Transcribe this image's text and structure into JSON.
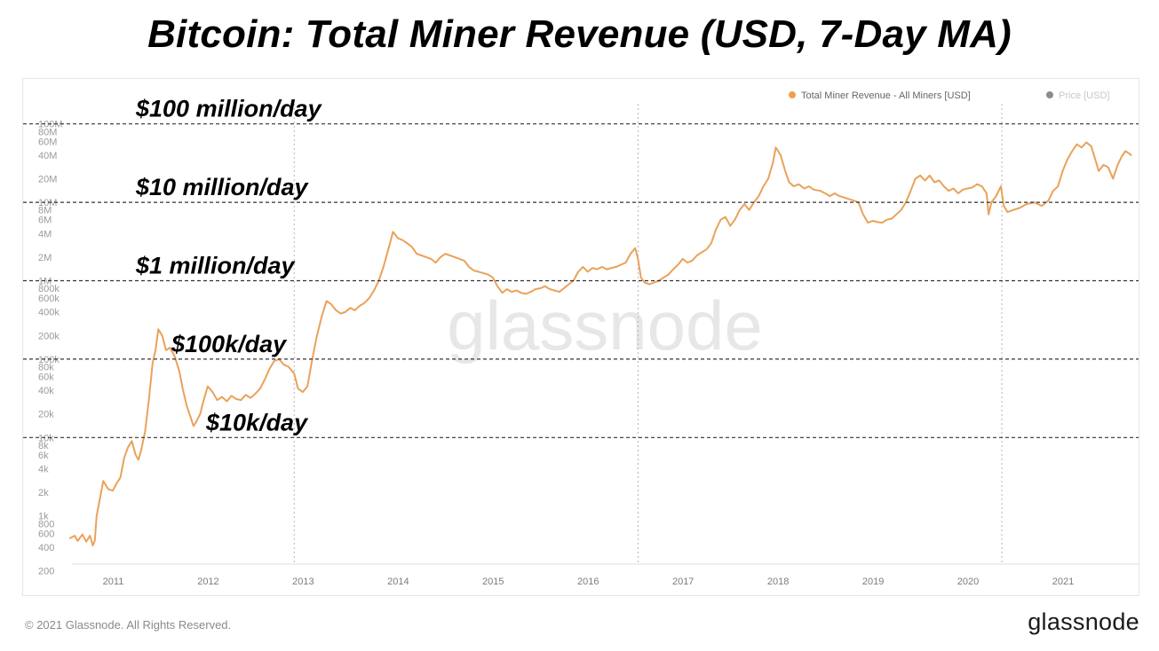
{
  "title": "Bitcoin: Total Miner Revenue (USD, 7-Day MA)",
  "footer": {
    "copyright": "© 2021 Glassnode. All Rights Reserved.",
    "logo": "glassnode"
  },
  "watermark": "glassnode",
  "chart_data": {
    "type": "line",
    "y_scale": "log",
    "ylim": [
      200,
      130000000
    ],
    "xlim": [
      2010.55,
      2021.8
    ],
    "x_ticks": [
      2011,
      2012,
      2013,
      2014,
      2015,
      2016,
      2017,
      2018,
      2019,
      2020,
      2021
    ],
    "x_tick_labels": [
      "2011",
      "2012",
      "2013",
      "2014",
      "2015",
      "2016",
      "2017",
      "2018",
      "2019",
      "2020",
      "2021"
    ],
    "y_ticks": [
      {
        "label": "100M",
        "value": 100000000
      },
      {
        "label": "80M",
        "value": 80000000
      },
      {
        "label": "60M",
        "value": 60000000
      },
      {
        "label": "40M",
        "value": 40000000
      },
      {
        "label": "20M",
        "value": 20000000
      },
      {
        "label": "10M",
        "value": 10000000
      },
      {
        "label": "8M",
        "value": 8000000
      },
      {
        "label": "6M",
        "value": 6000000
      },
      {
        "label": "4M",
        "value": 4000000
      },
      {
        "label": "2M",
        "value": 2000000
      },
      {
        "label": "1M",
        "value": 1000000
      },
      {
        "label": "800k",
        "value": 800000
      },
      {
        "label": "600k",
        "value": 600000
      },
      {
        "label": "400k",
        "value": 400000
      },
      {
        "label": "200k",
        "value": 200000
      },
      {
        "label": "100k",
        "value": 100000
      },
      {
        "label": "80k",
        "value": 80000
      },
      {
        "label": "60k",
        "value": 60000
      },
      {
        "label": "40k",
        "value": 40000
      },
      {
        "label": "20k",
        "value": 20000
      },
      {
        "label": "10k",
        "value": 10000
      },
      {
        "label": "8k",
        "value": 8000
      },
      {
        "label": "6k",
        "value": 6000
      },
      {
        "label": "4k",
        "value": 4000
      },
      {
        "label": "2k",
        "value": 2000
      },
      {
        "label": "1k",
        "value": 1000
      },
      {
        "label": "800",
        "value": 800
      },
      {
        "label": "600",
        "value": 600
      },
      {
        "label": "400",
        "value": 400
      },
      {
        "label": "200",
        "value": 200
      }
    ],
    "halving_lines": [
      2012.91,
      2016.53,
      2020.36
    ],
    "legend": [
      {
        "name": "Total Miner Revenue - All Miners [USD]",
        "color": "#f0a04b",
        "active": true
      },
      {
        "name": "Price [USD]",
        "color": "#8c8c8c",
        "active": false
      }
    ],
    "legend_position": "top-right",
    "reference_lines": [
      {
        "label": "$100 million/day",
        "value": 100000000
      },
      {
        "label": "$10 million/day",
        "value": 10000000
      },
      {
        "label": "$1 million/day",
        "value": 1000000
      },
      {
        "label": "$100k/day",
        "value": 100000
      },
      {
        "label": "$10k/day",
        "value": 10000
      }
    ],
    "series": [
      {
        "name": "Total Miner Revenue - All Miners [USD]",
        "color": "#e9a25a",
        "points": [
          [
            2010.55,
            520
          ],
          [
            2010.6,
            560
          ],
          [
            2010.63,
            480
          ],
          [
            2010.68,
            580
          ],
          [
            2010.72,
            470
          ],
          [
            2010.76,
            560
          ],
          [
            2010.79,
            420
          ],
          [
            2010.81,
            480
          ],
          [
            2010.83,
            1000
          ],
          [
            2010.87,
            1800
          ],
          [
            2010.9,
            2800
          ],
          [
            2010.95,
            2200
          ],
          [
            2011.0,
            2100
          ],
          [
            2011.04,
            2600
          ],
          [
            2011.08,
            3100
          ],
          [
            2011.12,
            5500
          ],
          [
            2011.16,
            7500
          ],
          [
            2011.2,
            9000
          ],
          [
            2011.24,
            6000
          ],
          [
            2011.27,
            5200
          ],
          [
            2011.3,
            7000
          ],
          [
            2011.34,
            12000
          ],
          [
            2011.38,
            30000
          ],
          [
            2011.42,
            90000
          ],
          [
            2011.45,
            130000
          ],
          [
            2011.48,
            240000
          ],
          [
            2011.52,
            200000
          ],
          [
            2011.56,
            130000
          ],
          [
            2011.6,
            140000
          ],
          [
            2011.65,
            110000
          ],
          [
            2011.7,
            70000
          ],
          [
            2011.74,
            40000
          ],
          [
            2011.78,
            25000
          ],
          [
            2011.82,
            18000
          ],
          [
            2011.85,
            14000
          ],
          [
            2011.88,
            16000
          ],
          [
            2011.92,
            20000
          ],
          [
            2011.95,
            28000
          ],
          [
            2012.0,
            45000
          ],
          [
            2012.05,
            38000
          ],
          [
            2012.1,
            30000
          ],
          [
            2012.15,
            33000
          ],
          [
            2012.2,
            29000
          ],
          [
            2012.25,
            34000
          ],
          [
            2012.3,
            31000
          ],
          [
            2012.35,
            30000
          ],
          [
            2012.4,
            35000
          ],
          [
            2012.45,
            32000
          ],
          [
            2012.5,
            36000
          ],
          [
            2012.55,
            42000
          ],
          [
            2012.6,
            55000
          ],
          [
            2012.65,
            75000
          ],
          [
            2012.7,
            95000
          ],
          [
            2012.75,
            100000
          ],
          [
            2012.8,
            85000
          ],
          [
            2012.85,
            80000
          ],
          [
            2012.91,
            65000
          ],
          [
            2012.95,
            42000
          ],
          [
            2013.0,
            38000
          ],
          [
            2013.05,
            45000
          ],
          [
            2013.1,
            100000
          ],
          [
            2013.15,
            200000
          ],
          [
            2013.2,
            350000
          ],
          [
            2013.25,
            550000
          ],
          [
            2013.3,
            500000
          ],
          [
            2013.35,
            420000
          ],
          [
            2013.4,
            380000
          ],
          [
            2013.45,
            400000
          ],
          [
            2013.5,
            450000
          ],
          [
            2013.55,
            420000
          ],
          [
            2013.6,
            480000
          ],
          [
            2013.65,
            520000
          ],
          [
            2013.7,
            600000
          ],
          [
            2013.75,
            750000
          ],
          [
            2013.8,
            1000000
          ],
          [
            2013.85,
            1500000
          ],
          [
            2013.9,
            2500000
          ],
          [
            2013.95,
            4200000
          ],
          [
            2014.0,
            3500000
          ],
          [
            2014.05,
            3300000
          ],
          [
            2014.1,
            3000000
          ],
          [
            2014.15,
            2700000
          ],
          [
            2014.2,
            2200000
          ],
          [
            2014.25,
            2100000
          ],
          [
            2014.3,
            2000000
          ],
          [
            2014.35,
            1900000
          ],
          [
            2014.4,
            1700000
          ],
          [
            2014.45,
            2000000
          ],
          [
            2014.5,
            2200000
          ],
          [
            2014.55,
            2100000
          ],
          [
            2014.6,
            2000000
          ],
          [
            2014.65,
            1900000
          ],
          [
            2014.7,
            1800000
          ],
          [
            2014.75,
            1500000
          ],
          [
            2014.8,
            1350000
          ],
          [
            2014.85,
            1300000
          ],
          [
            2014.9,
            1250000
          ],
          [
            2014.95,
            1200000
          ],
          [
            2015.0,
            1100000
          ],
          [
            2015.05,
            850000
          ],
          [
            2015.1,
            700000
          ],
          [
            2015.15,
            780000
          ],
          [
            2015.2,
            720000
          ],
          [
            2015.25,
            750000
          ],
          [
            2015.3,
            700000
          ],
          [
            2015.35,
            680000
          ],
          [
            2015.4,
            720000
          ],
          [
            2015.45,
            780000
          ],
          [
            2015.5,
            800000
          ],
          [
            2015.55,
            850000
          ],
          [
            2015.6,
            780000
          ],
          [
            2015.65,
            750000
          ],
          [
            2015.7,
            720000
          ],
          [
            2015.75,
            800000
          ],
          [
            2015.8,
            900000
          ],
          [
            2015.85,
            1000000
          ],
          [
            2015.9,
            1300000
          ],
          [
            2015.95,
            1500000
          ],
          [
            2016.0,
            1300000
          ],
          [
            2016.05,
            1450000
          ],
          [
            2016.1,
            1400000
          ],
          [
            2016.15,
            1500000
          ],
          [
            2016.2,
            1400000
          ],
          [
            2016.25,
            1450000
          ],
          [
            2016.3,
            1500000
          ],
          [
            2016.35,
            1600000
          ],
          [
            2016.4,
            1700000
          ],
          [
            2016.45,
            2200000
          ],
          [
            2016.5,
            2600000
          ],
          [
            2016.53,
            1900000
          ],
          [
            2016.56,
            1100000
          ],
          [
            2016.6,
            950000
          ],
          [
            2016.65,
            900000
          ],
          [
            2016.7,
            950000
          ],
          [
            2016.75,
            1000000
          ],
          [
            2016.8,
            1100000
          ],
          [
            2016.85,
            1200000
          ],
          [
            2016.9,
            1400000
          ],
          [
            2016.95,
            1600000
          ],
          [
            2017.0,
            1900000
          ],
          [
            2017.05,
            1700000
          ],
          [
            2017.1,
            1800000
          ],
          [
            2017.15,
            2100000
          ],
          [
            2017.2,
            2300000
          ],
          [
            2017.25,
            2500000
          ],
          [
            2017.3,
            3000000
          ],
          [
            2017.35,
            4500000
          ],
          [
            2017.4,
            6000000
          ],
          [
            2017.45,
            6500000
          ],
          [
            2017.5,
            5000000
          ],
          [
            2017.55,
            6000000
          ],
          [
            2017.6,
            8000000
          ],
          [
            2017.65,
            9500000
          ],
          [
            2017.7,
            8000000
          ],
          [
            2017.75,
            10000000
          ],
          [
            2017.8,
            12000000
          ],
          [
            2017.85,
            16000000
          ],
          [
            2017.9,
            20000000
          ],
          [
            2017.95,
            32000000
          ],
          [
            2017.98,
            50000000
          ],
          [
            2018.0,
            46000000
          ],
          [
            2018.03,
            40000000
          ],
          [
            2018.08,
            25000000
          ],
          [
            2018.12,
            18000000
          ],
          [
            2018.17,
            16000000
          ],
          [
            2018.22,
            17000000
          ],
          [
            2018.28,
            15000000
          ],
          [
            2018.33,
            16000000
          ],
          [
            2018.38,
            14500000
          ],
          [
            2018.45,
            14000000
          ],
          [
            2018.5,
            13000000
          ],
          [
            2018.55,
            12000000
          ],
          [
            2018.6,
            13000000
          ],
          [
            2018.65,
            12000000
          ],
          [
            2018.7,
            11500000
          ],
          [
            2018.75,
            11000000
          ],
          [
            2018.8,
            10500000
          ],
          [
            2018.85,
            10000000
          ],
          [
            2018.9,
            7000000
          ],
          [
            2018.95,
            5500000
          ],
          [
            2019.0,
            5800000
          ],
          [
            2019.05,
            5600000
          ],
          [
            2019.1,
            5500000
          ],
          [
            2019.15,
            6000000
          ],
          [
            2019.2,
            6200000
          ],
          [
            2019.25,
            7000000
          ],
          [
            2019.3,
            8000000
          ],
          [
            2019.35,
            10000000
          ],
          [
            2019.4,
            14000000
          ],
          [
            2019.45,
            20000000
          ],
          [
            2019.5,
            22000000
          ],
          [
            2019.55,
            19000000
          ],
          [
            2019.6,
            22000000
          ],
          [
            2019.65,
            18000000
          ],
          [
            2019.7,
            19000000
          ],
          [
            2019.75,
            16000000
          ],
          [
            2019.8,
            14000000
          ],
          [
            2019.85,
            15000000
          ],
          [
            2019.9,
            13000000
          ],
          [
            2019.95,
            14500000
          ],
          [
            2020.0,
            15000000
          ],
          [
            2020.05,
            15500000
          ],
          [
            2020.1,
            17000000
          ],
          [
            2020.15,
            16000000
          ],
          [
            2020.2,
            13000000
          ],
          [
            2020.22,
            7000000
          ],
          [
            2020.25,
            10000000
          ],
          [
            2020.3,
            12000000
          ],
          [
            2020.35,
            16000000
          ],
          [
            2020.38,
            9000000
          ],
          [
            2020.42,
            7500000
          ],
          [
            2020.48,
            8000000
          ],
          [
            2020.55,
            8500000
          ],
          [
            2020.62,
            9500000
          ],
          [
            2020.7,
            10000000
          ],
          [
            2020.78,
            9000000
          ],
          [
            2020.85,
            10500000
          ],
          [
            2020.9,
            14000000
          ],
          [
            2020.95,
            16000000
          ],
          [
            2021.0,
            25000000
          ],
          [
            2021.05,
            35000000
          ],
          [
            2021.1,
            45000000
          ],
          [
            2021.15,
            55000000
          ],
          [
            2021.2,
            50000000
          ],
          [
            2021.25,
            58000000
          ],
          [
            2021.3,
            52000000
          ],
          [
            2021.33,
            40000000
          ],
          [
            2021.38,
            25000000
          ],
          [
            2021.43,
            30000000
          ],
          [
            2021.48,
            28000000
          ],
          [
            2021.53,
            20000000
          ],
          [
            2021.58,
            30000000
          ],
          [
            2021.62,
            38000000
          ],
          [
            2021.66,
            45000000
          ],
          [
            2021.7,
            42000000
          ],
          [
            2021.72,
            40000000
          ]
        ]
      }
    ]
  }
}
